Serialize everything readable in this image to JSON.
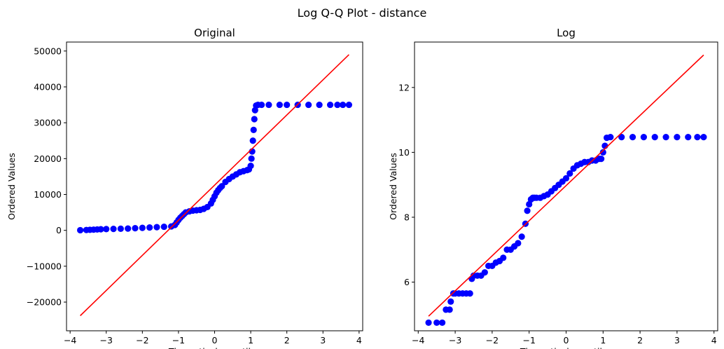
{
  "suptitle": "Log Q-Q Plot - distance",
  "chart_data": [
    {
      "type": "scatter",
      "title": "Original",
      "xlabel": "Theoretical quantiles",
      "ylabel": "Ordered Values",
      "xlim": [
        -4.1,
        4.1
      ],
      "ylim": [
        -28000,
        52500
      ],
      "xticks": [
        -4,
        -3,
        -2,
        -1,
        0,
        1,
        2,
        3,
        4
      ],
      "xtick_labels": [
        "−4",
        "−3",
        "−2",
        "−1",
        "0",
        "1",
        "2",
        "3",
        "4"
      ],
      "yticks": [
        -20000,
        -10000,
        0,
        10000,
        20000,
        30000,
        40000,
        50000
      ],
      "ytick_labels": [
        "−20000",
        "−10000",
        "0",
        "10000",
        "20000",
        "30000",
        "40000",
        "50000"
      ],
      "grid": false,
      "legend": "none",
      "marker_color": "#0000ff",
      "line_color": "#ff0000",
      "series": [
        {
          "kind": "points",
          "x": [
            -3.72,
            -3.55,
            -3.45,
            -3.35,
            -3.25,
            -3.15,
            -3.0,
            -2.8,
            -2.6,
            -2.4,
            -2.2,
            -2.0,
            -1.8,
            -1.6,
            -1.4,
            -1.2,
            -1.1,
            -1.05,
            -1.0,
            -0.95,
            -0.9,
            -0.85,
            -0.8,
            -0.7,
            -0.6,
            -0.5,
            -0.4,
            -0.3,
            -0.2,
            -0.1,
            -0.05,
            0.0,
            0.05,
            0.1,
            0.15,
            0.2,
            0.3,
            0.4,
            0.5,
            0.6,
            0.7,
            0.8,
            0.9,
            0.95,
            1.0,
            1.02,
            1.04,
            1.06,
            1.08,
            1.1,
            1.12,
            1.15,
            1.2,
            1.3,
            1.5,
            1.8,
            2.0,
            2.3,
            2.6,
            2.9,
            3.2,
            3.4,
            3.55,
            3.72
          ],
          "y": [
            50,
            100,
            150,
            200,
            250,
            300,
            350,
            400,
            450,
            500,
            600,
            700,
            800,
            900,
            1000,
            1100,
            1500,
            2200,
            2900,
            3500,
            4000,
            4500,
            5000,
            5300,
            5500,
            5600,
            5700,
            6000,
            6500,
            7500,
            8500,
            9500,
            10500,
            11200,
            11800,
            12300,
            13500,
            14300,
            15000,
            15600,
            16200,
            16500,
            16800,
            17000,
            18000,
            20000,
            22000,
            25000,
            28000,
            31000,
            33500,
            34800,
            35000,
            35000,
            35000,
            35000,
            35000,
            35000,
            35000,
            35000,
            35000,
            35000,
            35000,
            35000
          ]
        },
        {
          "kind": "line",
          "x": [
            -3.72,
            3.72
          ],
          "y": [
            -23800,
            49000
          ]
        }
      ]
    },
    {
      "type": "scatter",
      "title": "Log",
      "xlabel": "Theoretical quantiles",
      "ylabel": "Ordered Values",
      "xlim": [
        -4.1,
        4.1
      ],
      "ylim": [
        4.5,
        13.4
      ],
      "xticks": [
        -4,
        -3,
        -2,
        -1,
        0,
        1,
        2,
        3,
        4
      ],
      "xtick_labels": [
        "−4",
        "−3",
        "−2",
        "−1",
        "0",
        "1",
        "2",
        "3",
        "4"
      ],
      "yticks": [
        6,
        8,
        10,
        12
      ],
      "ytick_labels": [
        "6",
        "8",
        "10",
        "12"
      ],
      "grid": false,
      "legend": "none",
      "marker_color": "#0000ff",
      "line_color": "#ff0000",
      "series": [
        {
          "kind": "points",
          "x": [
            -3.72,
            -3.5,
            -3.35,
            -3.25,
            -3.15,
            -3.12,
            -3.05,
            -3.0,
            -2.9,
            -2.8,
            -2.7,
            -2.6,
            -2.55,
            -2.5,
            -2.4,
            -2.3,
            -2.2,
            -2.1,
            -2.0,
            -1.9,
            -1.8,
            -1.7,
            -1.6,
            -1.5,
            -1.4,
            -1.3,
            -1.2,
            -1.1,
            -1.05,
            -1.0,
            -0.95,
            -0.9,
            -0.85,
            -0.8,
            -0.7,
            -0.6,
            -0.5,
            -0.4,
            -0.3,
            -0.2,
            -0.1,
            0.0,
            0.1,
            0.2,
            0.3,
            0.4,
            0.5,
            0.6,
            0.7,
            0.8,
            0.9,
            0.95,
            1.0,
            1.05,
            1.1,
            1.2,
            1.5,
            1.8,
            2.1,
            2.4,
            2.7,
            3.0,
            3.3,
            3.55,
            3.72
          ],
          "y": [
            4.75,
            4.75,
            4.75,
            5.15,
            5.15,
            5.4,
            5.65,
            5.65,
            5.65,
            5.65,
            5.65,
            5.65,
            6.1,
            6.2,
            6.2,
            6.2,
            6.3,
            6.5,
            6.5,
            6.6,
            6.65,
            6.75,
            7.0,
            7.0,
            7.1,
            7.2,
            7.4,
            7.8,
            8.2,
            8.4,
            8.55,
            8.6,
            8.6,
            8.6,
            8.6,
            8.65,
            8.7,
            8.8,
            8.9,
            9.0,
            9.1,
            9.2,
            9.35,
            9.5,
            9.6,
            9.65,
            9.7,
            9.7,
            9.75,
            9.75,
            9.8,
            9.8,
            10.0,
            10.2,
            10.45,
            10.47,
            10.47,
            10.47,
            10.47,
            10.47,
            10.47,
            10.47,
            10.47,
            10.47,
            10.47
          ]
        },
        {
          "kind": "line",
          "x": [
            -3.72,
            3.72
          ],
          "y": [
            4.95,
            13.0
          ]
        }
      ]
    }
  ]
}
